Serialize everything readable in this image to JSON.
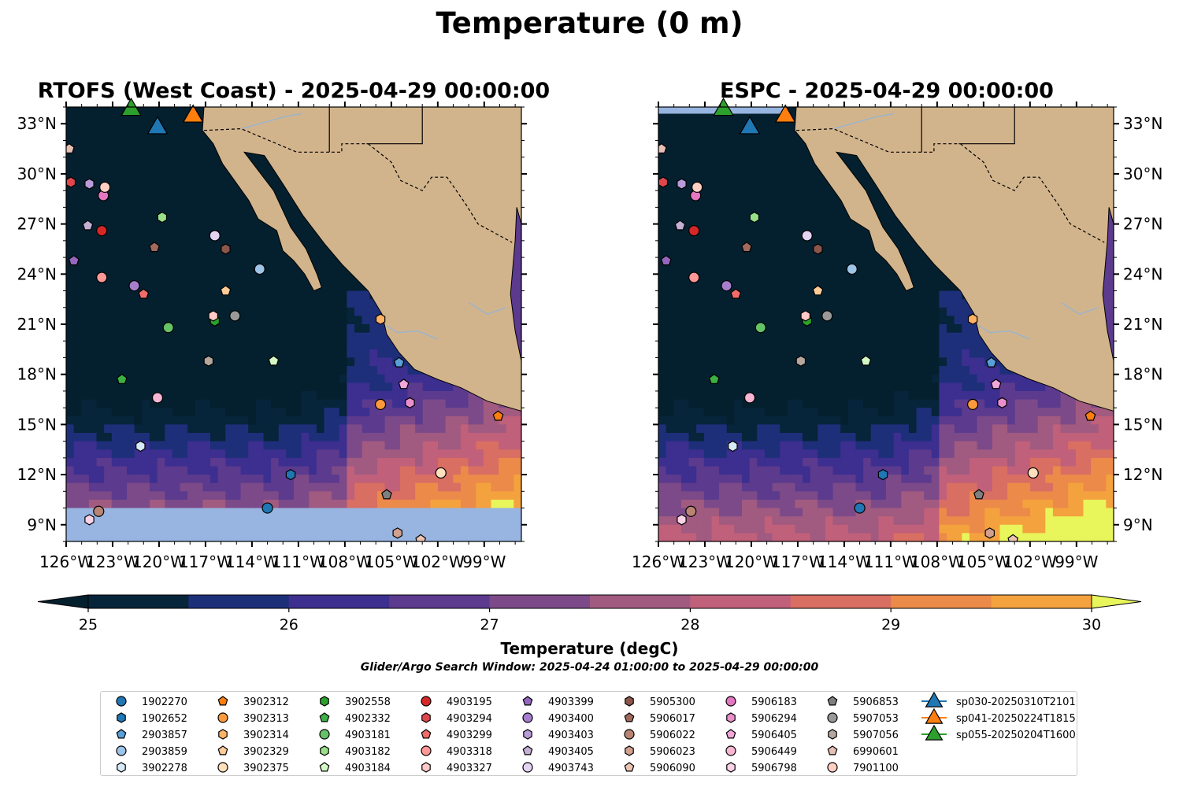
{
  "figure": {
    "title": "Temperature (0 m)"
  },
  "panels": [
    {
      "id": "rtofs",
      "title": "RTOFS (West Coast) - 2025-04-29 00:00:00"
    },
    {
      "id": "espc",
      "title": "ESPC - 2025-04-29 00:00:00"
    }
  ],
  "axes": {
    "lon_ticks": [
      "126°W",
      "123°W",
      "120°W",
      "117°W",
      "114°W",
      "111°W",
      "108°W",
      "105°W",
      "102°W",
      "99°W"
    ],
    "lat_ticks": [
      "33°N",
      "30°N",
      "27°N",
      "24°N",
      "21°N",
      "18°N",
      "15°N",
      "12°N",
      "9°N"
    ]
  },
  "colorbar": {
    "label": "Temperature (degC)",
    "ticks": [
      "25",
      "26",
      "27",
      "28",
      "29",
      "30"
    ],
    "colors": [
      "#06243a",
      "#1e2f7a",
      "#3c2f8f",
      "#5c3a8e",
      "#7c4a89",
      "#a15a80",
      "#c0607a",
      "#d96e62",
      "#ec8a4a",
      "#f4a23e",
      "#f6c13a"
    ],
    "under_color": "#04202e",
    "over_color": "#e8f55b",
    "extend": "both"
  },
  "search_window": "Glider/Argo Search Window: 2025-04-24 01:00:00 to 2025-04-29 00:00:00",
  "colors": {
    "land": "#d2b48c",
    "nodata": "#97b5e0",
    "rivers": "#9ab4cc"
  },
  "legend": [
    {
      "label": "1902270",
      "marker": "circle",
      "color": "#1f77b4"
    },
    {
      "label": "1902652",
      "marker": "hexagon",
      "color": "#1f77b4"
    },
    {
      "label": "2903857",
      "marker": "pentagon",
      "color": "#5aa0d8"
    },
    {
      "label": "2903859",
      "marker": "circle",
      "color": "#9ec5e8"
    },
    {
      "label": "3902278",
      "marker": "hexagon",
      "color": "#d6eaf8"
    },
    {
      "label": "3902312",
      "marker": "pentagon",
      "color": "#ff7f0e"
    },
    {
      "label": "3902313",
      "marker": "circle",
      "color": "#ff9a3c"
    },
    {
      "label": "3902314",
      "marker": "hexagon",
      "color": "#ffb366"
    },
    {
      "label": "3902329",
      "marker": "pentagon",
      "color": "#ffcc99"
    },
    {
      "label": "3902375",
      "marker": "circle",
      "color": "#ffe0bd"
    },
    {
      "label": "3902558",
      "marker": "hexagon",
      "color": "#2ca02c"
    },
    {
      "label": "4902332",
      "marker": "pentagon",
      "color": "#3cb043"
    },
    {
      "label": "4903181",
      "marker": "circle",
      "color": "#66c266"
    },
    {
      "label": "4903182",
      "marker": "hexagon",
      "color": "#98df8a"
    },
    {
      "label": "4903184",
      "marker": "pentagon",
      "color": "#d4f7c5"
    },
    {
      "label": "4903195",
      "marker": "circle",
      "color": "#d62728"
    },
    {
      "label": "4903294",
      "marker": "hexagon",
      "color": "#e0474c"
    },
    {
      "label": "4903299",
      "marker": "pentagon",
      "color": "#f26b6b"
    },
    {
      "label": "4903318",
      "marker": "circle",
      "color": "#ff9896"
    },
    {
      "label": "4903327",
      "marker": "hexagon",
      "color": "#ffc9c7"
    },
    {
      "label": "4903399",
      "marker": "pentagon",
      "color": "#9467bd"
    },
    {
      "label": "4903400",
      "marker": "circle",
      "color": "#a67fcc"
    },
    {
      "label": "4903403",
      "marker": "hexagon",
      "color": "#b99bd9"
    },
    {
      "label": "4903405",
      "marker": "pentagon",
      "color": "#c5b0d5"
    },
    {
      "label": "4903743",
      "marker": "circle",
      "color": "#e3d5f2"
    },
    {
      "label": "5905300",
      "marker": "hexagon",
      "color": "#8c564b"
    },
    {
      "label": "5906017",
      "marker": "pentagon",
      "color": "#a16a5c"
    },
    {
      "label": "5906022",
      "marker": "circle",
      "color": "#b98474"
    },
    {
      "label": "5906023",
      "marker": "hexagon",
      "color": "#d1a08f"
    },
    {
      "label": "5906090",
      "marker": "pentagon",
      "color": "#ebc3b5"
    },
    {
      "label": "5906183",
      "marker": "circle",
      "color": "#e377c2"
    },
    {
      "label": "5906294",
      "marker": "hexagon",
      "color": "#e98fcd"
    },
    {
      "label": "5906405",
      "marker": "pentagon",
      "color": "#f2a6da"
    },
    {
      "label": "5906449",
      "marker": "circle",
      "color": "#f7b6d2"
    },
    {
      "label": "5906798",
      "marker": "hexagon",
      "color": "#fbd3e9"
    },
    {
      "label": "5906853",
      "marker": "pentagon",
      "color": "#7f7f7f"
    },
    {
      "label": "5907053",
      "marker": "circle",
      "color": "#999999"
    },
    {
      "label": "5907056",
      "marker": "hexagon",
      "color": "#b5a79e"
    },
    {
      "label": "6990601",
      "marker": "pentagon",
      "color": "#e6bfb5"
    },
    {
      "label": "7901100",
      "marker": "circle",
      "color": "#fdd0c3"
    },
    {
      "label": "sp030-20250310T2101",
      "marker": "triangle",
      "color": "#1f77b4"
    },
    {
      "label": "sp041-20250224T1815",
      "marker": "triangle",
      "color": "#ff7f0e"
    },
    {
      "label": "sp055-20250204T1600",
      "marker": "triangle",
      "color": "#2ca02c"
    }
  ],
  "floats": [
    {
      "id": "1902270",
      "lon": -113.0,
      "lat": 10.0
    },
    {
      "id": "1902652",
      "lon": -111.5,
      "lat": 12.0
    },
    {
      "id": "2903857",
      "lon": -104.5,
      "lat": 18.7
    },
    {
      "id": "2903859",
      "lon": -113.5,
      "lat": 24.3
    },
    {
      "id": "3902278",
      "lon": -121.2,
      "lat": 13.7
    },
    {
      "id": "3902312",
      "lon": -98.1,
      "lat": 15.5
    },
    {
      "id": "3902313",
      "lon": -105.7,
      "lat": 16.2
    },
    {
      "id": "3902314",
      "lon": -105.7,
      "lat": 21.3
    },
    {
      "id": "3902329",
      "lon": -115.7,
      "lat": 23.0
    },
    {
      "id": "3902375",
      "lon": -101.8,
      "lat": 12.1
    },
    {
      "id": "3902558",
      "lon": -116.4,
      "lat": 21.2
    },
    {
      "id": "4902332",
      "lon": -122.4,
      "lat": 17.7
    },
    {
      "id": "4903181",
      "lon": -119.4,
      "lat": 20.8
    },
    {
      "id": "4903182",
      "lon": -119.8,
      "lat": 27.4
    },
    {
      "id": "4903184",
      "lon": -112.6,
      "lat": 18.8
    },
    {
      "id": "4903195",
      "lon": -123.7,
      "lat": 26.6
    },
    {
      "id": "4903294",
      "lon": -125.7,
      "lat": 29.5
    },
    {
      "id": "4903299",
      "lon": -121.0,
      "lat": 22.8
    },
    {
      "id": "4903318",
      "lon": -123.7,
      "lat": 23.8
    },
    {
      "id": "4903327",
      "lon": -116.5,
      "lat": 21.5
    },
    {
      "id": "4903399",
      "lon": -125.5,
      "lat": 24.8
    },
    {
      "id": "4903400",
      "lon": -121.6,
      "lat": 23.3
    },
    {
      "id": "4903403",
      "lon": -124.5,
      "lat": 29.4
    },
    {
      "id": "4903405",
      "lon": -124.6,
      "lat": 26.9
    },
    {
      "id": "4903743",
      "lon": -116.4,
      "lat": 26.3
    },
    {
      "id": "5905300",
      "lon": -115.7,
      "lat": 25.5
    },
    {
      "id": "5906017",
      "lon": -120.3,
      "lat": 25.6
    },
    {
      "id": "5906022",
      "lon": -123.9,
      "lat": 9.8
    },
    {
      "id": "5906023",
      "lon": -104.6,
      "lat": 8.5
    },
    {
      "id": "5906090",
      "lon": -103.1,
      "lat": 8.1
    },
    {
      "id": "5906183",
      "lon": -123.6,
      "lat": 28.7
    },
    {
      "id": "5906294",
      "lon": -103.8,
      "lat": 16.3
    },
    {
      "id": "5906405",
      "lon": -104.2,
      "lat": 17.4
    },
    {
      "id": "5906449",
      "lon": -120.1,
      "lat": 16.6
    },
    {
      "id": "5906798",
      "lon": -124.5,
      "lat": 9.3
    },
    {
      "id": "5906853",
      "lon": -105.3,
      "lat": 10.8
    },
    {
      "id": "5907053",
      "lon": -115.1,
      "lat": 21.5
    },
    {
      "id": "5907056",
      "lon": -116.8,
      "lat": 18.8
    },
    {
      "id": "6990601",
      "lon": -125.8,
      "lat": 31.5
    },
    {
      "id": "7901100",
      "lon": -123.5,
      "lat": 29.2
    }
  ],
  "gliders": [
    {
      "id": "sp030-20250310T2101",
      "lon": -120.1,
      "lat": 32.8
    },
    {
      "id": "sp041-20250224T1815",
      "lon": -117.8,
      "lat": 33.5
    },
    {
      "id": "sp055-20250204T1600",
      "lon": -121.8,
      "lat": 33.9
    }
  ]
}
